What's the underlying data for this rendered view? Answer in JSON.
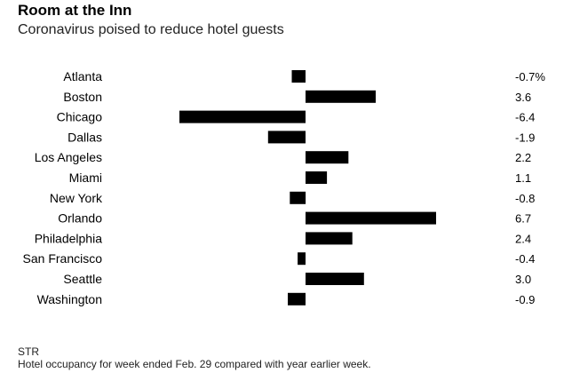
{
  "header": {
    "title": "Room at the Inn",
    "subtitle": "Coronavirus poised to reduce hotel guests"
  },
  "footer": {
    "source": "STR",
    "note": "Hotel occupancy for week ended Feb. 29 compared with year earlier week."
  },
  "colors": {
    "bar": "#000000"
  },
  "chart_data": {
    "type": "bar",
    "orientation": "horizontal",
    "categories": [
      "Atlanta",
      "Boston",
      "Chicago",
      "Dallas",
      "Los Angeles",
      "Miami",
      "New York",
      "Orlando",
      "Philadelphia",
      "San Francisco",
      "Seattle",
      "Washington"
    ],
    "values": [
      -0.7,
      3.6,
      -6.4,
      -1.9,
      2.2,
      1.1,
      -0.8,
      6.7,
      2.4,
      -0.4,
      3.0,
      -0.9
    ],
    "value_labels": [
      "-0.7%",
      "3.6",
      "-6.4",
      "-1.9",
      "2.2",
      "1.1",
      "-0.8",
      "6.7",
      "2.4",
      "-0.4",
      "3.0",
      "-0.9"
    ],
    "title": "Room at the Inn",
    "subtitle": "Coronavirus poised to reduce hotel guests",
    "xlim": [
      -6.4,
      6.7
    ],
    "grid": false,
    "legend": "none"
  }
}
